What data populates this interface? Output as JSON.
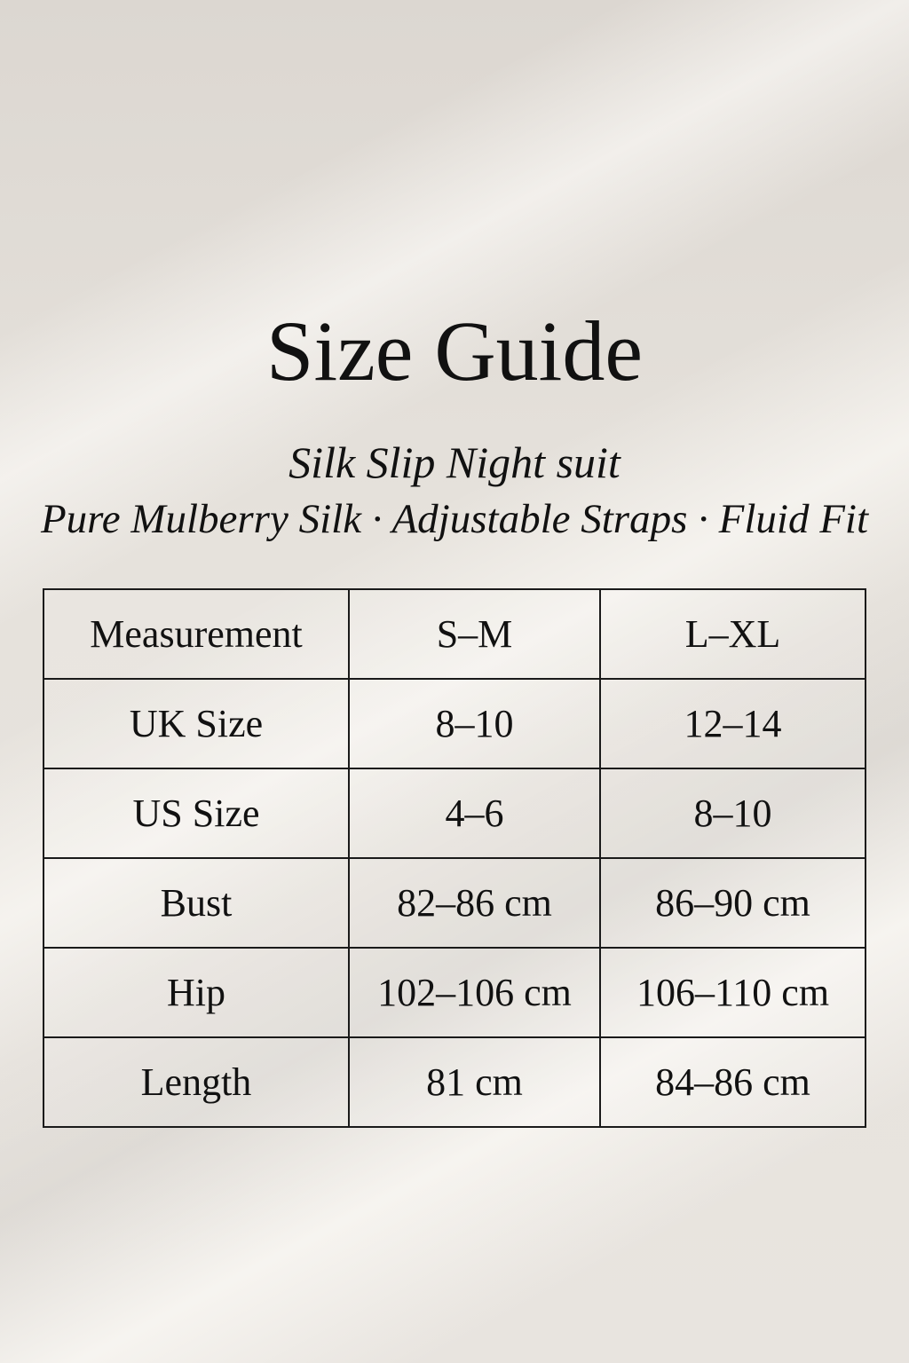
{
  "title": "Size Guide",
  "subtitle": "Silk Slip Night suit",
  "tagline": "Pure Mulberry Silk · Adjustable Straps · Fluid Fit",
  "table": {
    "rows": [
      [
        "Measurement",
        "S–M",
        "L–XL"
      ],
      [
        "UK Size",
        "8–10",
        "12–14"
      ],
      [
        "US Size",
        "4–6",
        "8–10"
      ],
      [
        "Bust",
        "82–86 cm",
        "86–90 cm"
      ],
      [
        "Hip",
        "102–106 cm",
        "106–110 cm"
      ],
      [
        "Length",
        "81 cm",
        "84–86 cm"
      ]
    ]
  }
}
